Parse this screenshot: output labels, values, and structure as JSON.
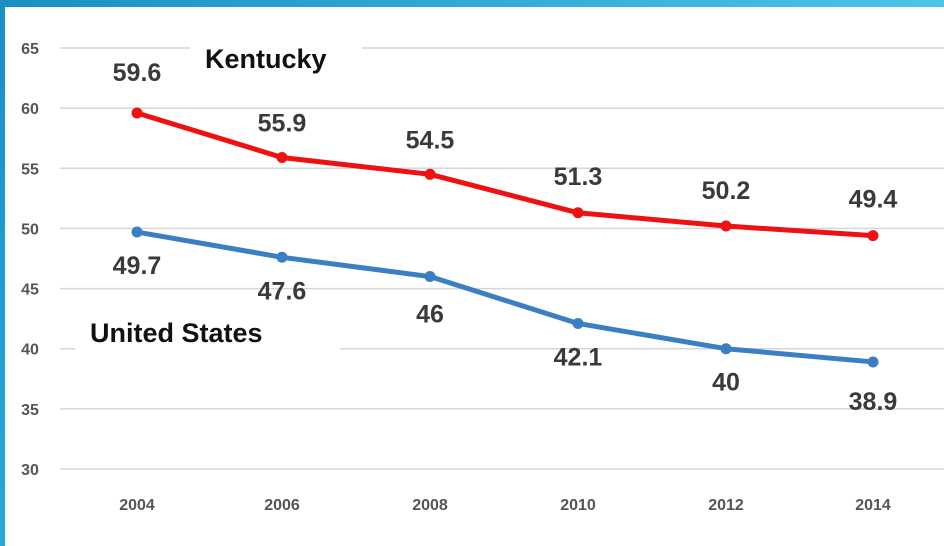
{
  "chart_data": {
    "type": "line",
    "x": [
      "2004",
      "2006",
      "2008",
      "2010",
      "2012",
      "2014"
    ],
    "ylim": [
      30,
      65
    ],
    "yticks": [
      "30",
      "35",
      "40",
      "45",
      "50",
      "55",
      "60",
      "65"
    ],
    "grid": true,
    "series": [
      {
        "name": "Kentucky",
        "color": "#ee1111",
        "values": [
          59.6,
          55.9,
          54.5,
          51.3,
          50.2,
          49.4
        ],
        "labels": [
          "59.6",
          "55.9",
          "54.5",
          "51.3",
          "50.2",
          "49.4"
        ]
      },
      {
        "name": "United States",
        "color": "#3a7fc1",
        "values": [
          49.7,
          47.6,
          46,
          42.1,
          40,
          38.9
        ],
        "labels": [
          "49.7",
          "47.6",
          "46",
          "42.1",
          "40",
          "38.9"
        ]
      }
    ]
  }
}
